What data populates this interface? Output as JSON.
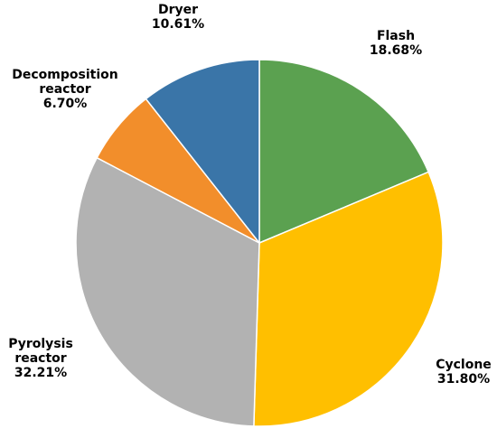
{
  "chart_data": {
    "type": "pie",
    "title": "",
    "slices": [
      {
        "name": "Flash",
        "lines": [
          "Flash",
          "18.68%"
        ],
        "value": 18.68,
        "color": "#5ba150"
      },
      {
        "name": "Cyclone",
        "lines": [
          "Cyclone",
          "31.80%"
        ],
        "value": 31.8,
        "color": "#ffbf00"
      },
      {
        "name": "Pyrolysis reactor",
        "lines": [
          "Pyrolysis",
          "reactor",
          "32.21%"
        ],
        "value": 32.21,
        "color": "#b2b2b2"
      },
      {
        "name": "Decomposition reactor",
        "lines": [
          "Decomposition",
          "reactor",
          "6.70%"
        ],
        "value": 6.7,
        "color": "#f28e2b"
      },
      {
        "name": "Dryer",
        "lines": [
          "Dryer",
          "10.61%"
        ],
        "value": 10.61,
        "color": "#3a75a8"
      }
    ],
    "start_angle": "12 o'clock",
    "direction": "clockwise",
    "legend": "none"
  }
}
